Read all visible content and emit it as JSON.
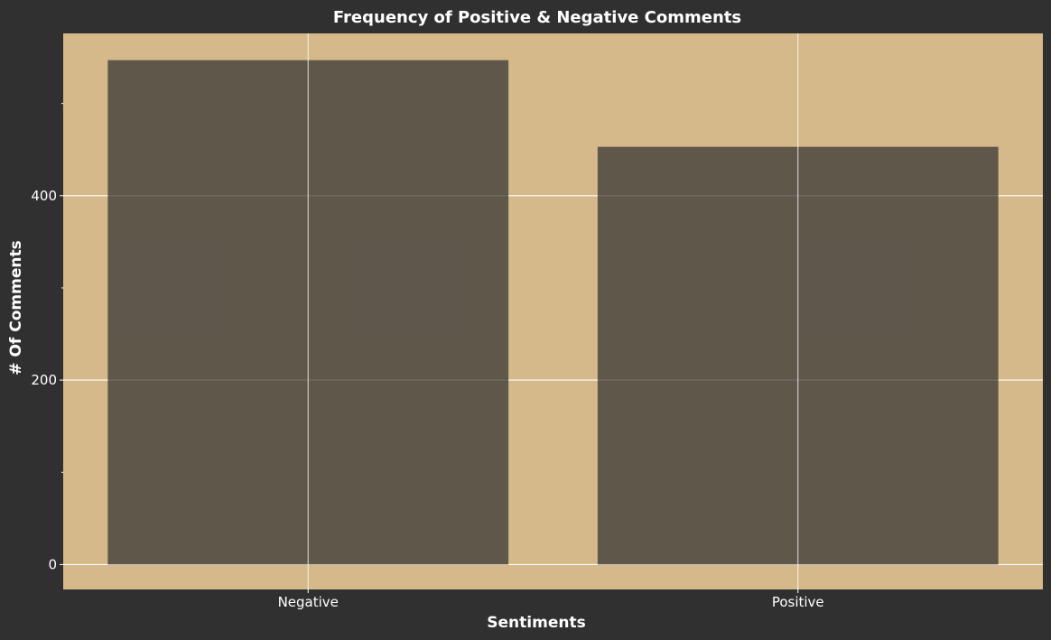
{
  "chart_data": {
    "type": "bar",
    "title": "Frequency of Positive & Negative Comments",
    "xlabel": "Sentiments",
    "ylabel": "# Of Comments",
    "categories": [
      "Negative",
      "Positive"
    ],
    "values": [
      547,
      453
    ],
    "ylim": [
      -27,
      576
    ],
    "yticks": [
      0,
      200,
      400
    ],
    "yticks_minor": [
      100,
      300,
      500
    ],
    "grid": true,
    "legend": "none",
    "colors": {
      "background": "#303030",
      "panel": "#d6b98a",
      "bar": "#5b5349",
      "grid": "#ffffff",
      "text": "#ffffff"
    }
  }
}
